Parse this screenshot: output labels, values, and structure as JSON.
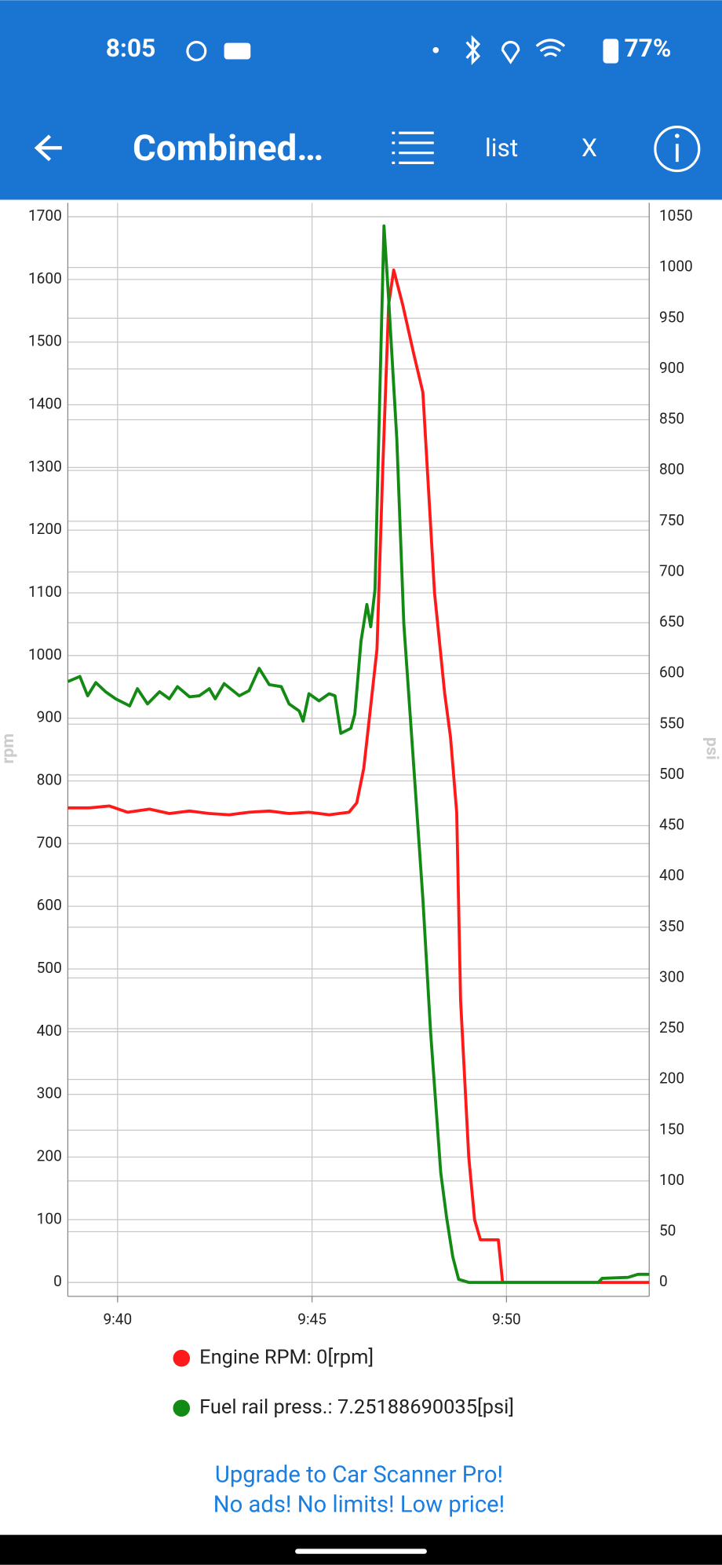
{
  "status_bar": {
    "time": "8:05",
    "battery": "77%"
  },
  "app_bar": {
    "title": "Combined…",
    "list": "list",
    "close": "X"
  },
  "chart_data": {
    "type": "line",
    "ylabel": "rpm",
    "y2label": "psi",
    "xlim": [
      38.72,
      53.67
    ],
    "xticks": [
      {
        "value": 40,
        "label": "9:40"
      },
      {
        "value": 45,
        "label": "9:45"
      },
      {
        "value": 50,
        "label": "9:50"
      }
    ],
    "ylim": [
      0,
      1700
    ],
    "yticks": [
      0,
      100,
      200,
      300,
      400,
      500,
      600,
      700,
      800,
      900,
      1000,
      1100,
      1200,
      1300,
      1400,
      1500,
      1600,
      1700
    ],
    "y2lim": [
      0,
      1050
    ],
    "y2ticks": [
      0,
      50,
      100,
      150,
      200,
      250,
      300,
      350,
      400,
      450,
      500,
      550,
      600,
      650,
      700,
      750,
      800,
      850,
      900,
      950,
      1000,
      1050
    ],
    "grid": true,
    "series": [
      {
        "name": "Engine RPM: 0[rpm]",
        "color": "#ff1a1a",
        "x": [
          38.72,
          39.28,
          39.79,
          40.26,
          40.82,
          41.33,
          41.85,
          42.36,
          42.87,
          43.38,
          43.9,
          44.41,
          44.92,
          45.44,
          45.95,
          46.15,
          46.33,
          46.51,
          46.67,
          46.82,
          46.97,
          47.1,
          47.33,
          47.62,
          47.85,
          48.15,
          48.41,
          48.56,
          48.72,
          48.82,
          49.03,
          49.18,
          49.33,
          49.79,
          49.9,
          53.67
        ],
        "values": [
          757,
          757,
          760,
          750,
          755,
          748,
          752,
          748,
          746,
          750,
          752,
          748,
          750,
          746,
          750,
          765,
          820,
          920,
          1010,
          1300,
          1560,
          1615,
          1560,
          1480,
          1420,
          1100,
          940,
          870,
          750,
          450,
          200,
          100,
          68,
          68,
          0,
          0
        ]
      },
      {
        "name": "Fuel rail press.: 7.25188690035[psi]",
        "color": "#138a13",
        "axis": "y2",
        "x": [
          38.72,
          39.03,
          39.23,
          39.44,
          39.69,
          39.95,
          40.31,
          40.51,
          40.77,
          41.08,
          41.33,
          41.54,
          41.85,
          42.1,
          42.36,
          42.51,
          42.74,
          43.13,
          43.38,
          43.64,
          43.9,
          44.21,
          44.41,
          44.67,
          44.77,
          44.92,
          45.18,
          45.44,
          45.59,
          45.74,
          46.0,
          46.1,
          46.26,
          46.41,
          46.51,
          46.62,
          46.72,
          46.85,
          46.97,
          47.18,
          47.36,
          47.62,
          47.85,
          48.05,
          48.31,
          48.46,
          48.62,
          48.77,
          49.03,
          52.36,
          52.46,
          53.13,
          53.38,
          53.67
        ],
        "values": [
          592,
          597,
          578,
          591,
          582,
          575,
          568,
          585,
          570,
          582,
          575,
          587,
          577,
          578,
          585,
          575,
          590,
          578,
          583,
          605,
          589,
          587,
          570,
          563,
          553,
          580,
          573,
          580,
          578,
          541,
          546,
          560,
          632,
          668,
          646,
          683,
          840,
          1041,
          969,
          831,
          649,
          506,
          378,
          246,
          108,
          64,
          25,
          3,
          0,
          0,
          4,
          5,
          8,
          8
        ]
      }
    ]
  },
  "ad": {
    "line1": "Upgrade to Car Scanner Pro!",
    "line2": "No ads! No limits! Low price!"
  }
}
